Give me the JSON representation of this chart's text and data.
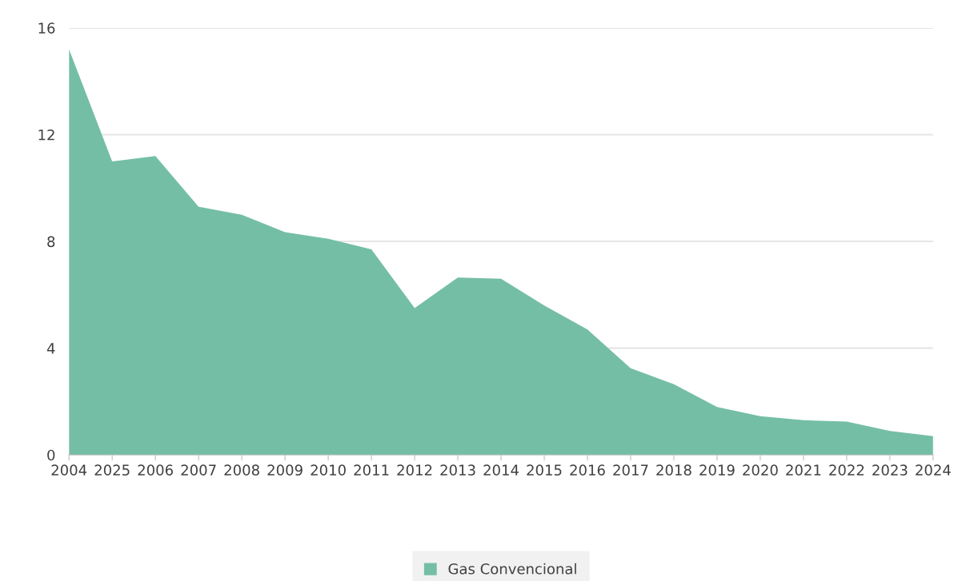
{
  "chart_data": {
    "type": "area",
    "categories": [
      "2004",
      "2025",
      "2006",
      "2007",
      "2008",
      "2009",
      "2010",
      "2011",
      "2012",
      "2013",
      "2014",
      "2015",
      "2016",
      "2017",
      "2018",
      "2019",
      "2020",
      "2021",
      "2022",
      "2023",
      "2024"
    ],
    "series": [
      {
        "name": "Gas Convencional",
        "color": "#75bea6",
        "values": [
          15.2,
          11.0,
          11.2,
          9.3,
          9.0,
          8.35,
          8.1,
          7.7,
          5.5,
          6.65,
          6.6,
          5.6,
          4.7,
          3.25,
          2.65,
          1.8,
          1.45,
          1.3,
          1.25,
          0.9,
          0.7
        ]
      }
    ],
    "ylim": [
      0,
      16
    ],
    "yticks": [
      0,
      4,
      8,
      12,
      16
    ],
    "grid": "y",
    "legend": "bottom"
  }
}
